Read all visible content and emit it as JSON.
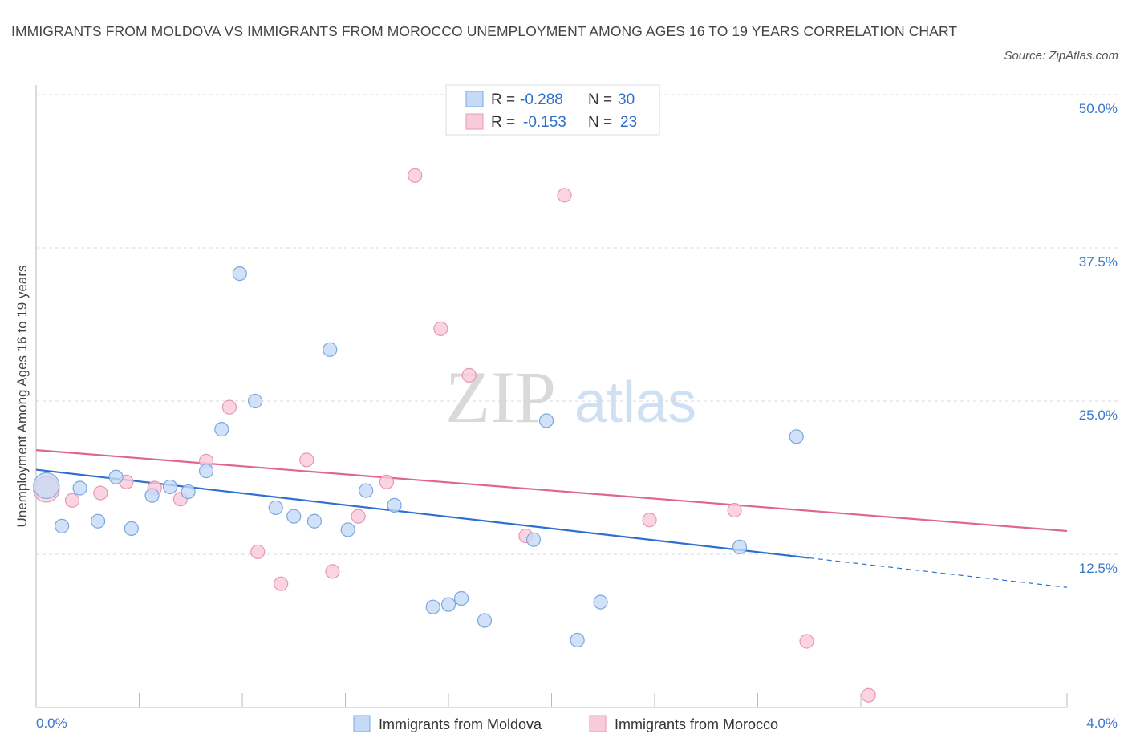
{
  "title": "IMMIGRANTS FROM MOLDOVA VS IMMIGRANTS FROM MOROCCO UNEMPLOYMENT AMONG AGES 16 TO 19 YEARS CORRELATION CHART",
  "source": "Source: ZipAtlas.com",
  "watermark": {
    "zip": "ZIP",
    "atlas": "atlas"
  },
  "colors": {
    "moldova_fill": "#c5daf6",
    "moldova_stroke": "#7aa8e0",
    "moldova_line": "#2d6fd0",
    "morocco_fill": "#f9cbda",
    "morocco_stroke": "#e898b2",
    "morocco_line": "#e0668f",
    "grid": "#d8d8d8",
    "tick_text": "#3a78c9"
  },
  "legend_top": {
    "rows": [
      {
        "r_label": "R =",
        "r_value": "-0.288",
        "n_label": "N =",
        "n_value": "30"
      },
      {
        "r_label": "R =",
        "r_value": "-0.153",
        "n_label": "N =",
        "n_value": "23"
      }
    ]
  },
  "chart_data": {
    "type": "scatter",
    "title": "IMMIGRANTS FROM MOLDOVA VS IMMIGRANTS FROM MOROCCO UNEMPLOYMENT AMONG AGES 16 TO 19 YEARS CORRELATION CHART",
    "xlabel": "",
    "ylabel": "Unemployment Among Ages 16 to 19 years",
    "xlim": [
      0,
      4.0
    ],
    "ylim": [
      0,
      50
    ],
    "x_tick_labels": [
      "0.0%",
      "4.0%"
    ],
    "y_tick_labels": [
      "12.5%",
      "25.0%",
      "37.5%",
      "50.0%"
    ],
    "y_ticks": [
      12.5,
      25,
      37.5,
      50
    ],
    "series": [
      {
        "name": "Immigrants from Moldova",
        "r": -0.288,
        "n": 30,
        "trend": {
          "x0": 0.0,
          "y0": 19.4,
          "x1": 3.0,
          "y1": 12.2,
          "dash_x1": 4.0,
          "dash_y1": 9.8
        },
        "points": [
          {
            "x": 0.04,
            "y": 18.1,
            "big": true
          },
          {
            "x": 0.1,
            "y": 14.8
          },
          {
            "x": 0.17,
            "y": 17.9
          },
          {
            "x": 0.24,
            "y": 15.2
          },
          {
            "x": 0.31,
            "y": 18.8
          },
          {
            "x": 0.37,
            "y": 14.6
          },
          {
            "x": 0.45,
            "y": 17.3
          },
          {
            "x": 0.52,
            "y": 18.0
          },
          {
            "x": 0.59,
            "y": 17.6
          },
          {
            "x": 0.66,
            "y": 19.3
          },
          {
            "x": 0.72,
            "y": 22.7
          },
          {
            "x": 0.79,
            "y": 35.4
          },
          {
            "x": 0.85,
            "y": 25.0
          },
          {
            "x": 0.93,
            "y": 16.3
          },
          {
            "x": 1.0,
            "y": 15.6
          },
          {
            "x": 1.08,
            "y": 15.2
          },
          {
            "x": 1.14,
            "y": 29.2
          },
          {
            "x": 1.21,
            "y": 14.5
          },
          {
            "x": 1.28,
            "y": 17.7
          },
          {
            "x": 1.39,
            "y": 16.5
          },
          {
            "x": 1.54,
            "y": 8.2
          },
          {
            "x": 1.6,
            "y": 8.4
          },
          {
            "x": 1.65,
            "y": 8.9
          },
          {
            "x": 1.74,
            "y": 7.1
          },
          {
            "x": 1.93,
            "y": 13.7
          },
          {
            "x": 1.98,
            "y": 23.4
          },
          {
            "x": 2.1,
            "y": 5.5
          },
          {
            "x": 2.19,
            "y": 8.6
          },
          {
            "x": 2.73,
            "y": 13.1
          },
          {
            "x": 2.95,
            "y": 22.1
          }
        ]
      },
      {
        "name": "Immigrants from Morocco",
        "r": -0.153,
        "n": 23,
        "trend": {
          "x0": 0.0,
          "y0": 21.0,
          "x1": 4.0,
          "y1": 14.4
        },
        "points": [
          {
            "x": 0.04,
            "y": 17.8,
            "big": true
          },
          {
            "x": 0.14,
            "y": 16.9
          },
          {
            "x": 0.25,
            "y": 17.5
          },
          {
            "x": 0.35,
            "y": 18.4
          },
          {
            "x": 0.46,
            "y": 17.9
          },
          {
            "x": 0.56,
            "y": 17.0
          },
          {
            "x": 0.66,
            "y": 20.1
          },
          {
            "x": 0.75,
            "y": 24.5
          },
          {
            "x": 0.86,
            "y": 12.7
          },
          {
            "x": 0.95,
            "y": 10.1
          },
          {
            "x": 1.05,
            "y": 20.2
          },
          {
            "x": 1.15,
            "y": 11.1
          },
          {
            "x": 1.25,
            "y": 15.6
          },
          {
            "x": 1.36,
            "y": 18.4
          },
          {
            "x": 1.47,
            "y": 43.4
          },
          {
            "x": 1.57,
            "y": 30.9
          },
          {
            "x": 1.68,
            "y": 27.1
          },
          {
            "x": 1.9,
            "y": 14.0
          },
          {
            "x": 2.05,
            "y": 41.8
          },
          {
            "x": 2.38,
            "y": 15.3
          },
          {
            "x": 2.71,
            "y": 16.1
          },
          {
            "x": 2.99,
            "y": 5.4
          },
          {
            "x": 3.23,
            "y": 1.0
          }
        ]
      }
    ]
  }
}
